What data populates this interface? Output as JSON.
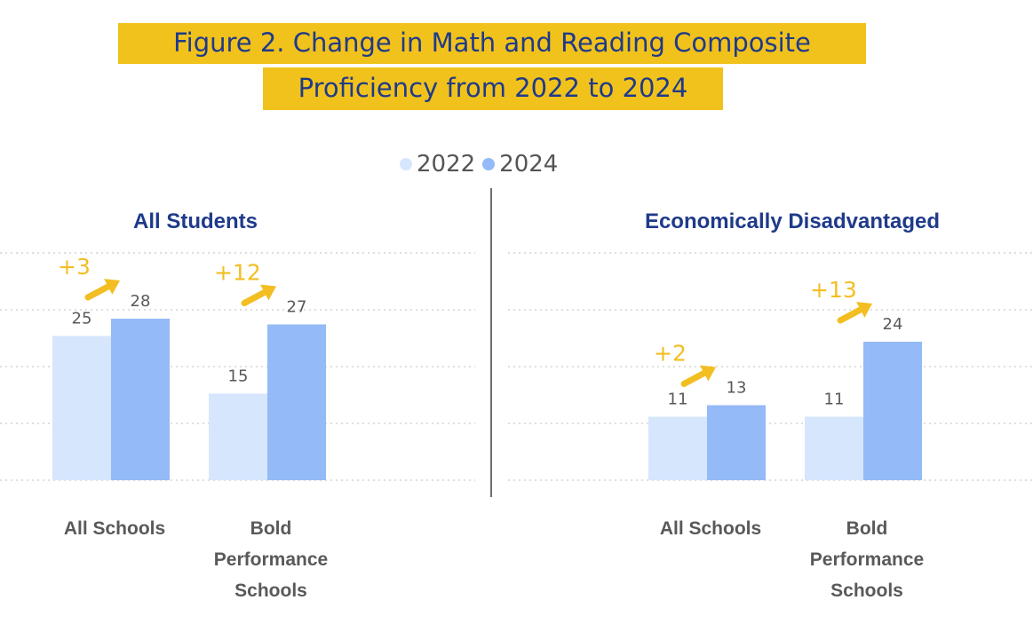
{
  "title_line_1": "Figure 2. Change in Math and Reading Composite",
  "title_line_2": "Proficiency from 2022 to 2024",
  "colors": {
    "title_band": "#F1C21B",
    "title_text": "#1F3A8A",
    "series_2022": "#D6E6FC",
    "series_2024": "#94BAF7",
    "delta": "#F2BE22",
    "grid": "#D4D4D4"
  },
  "legend": [
    {
      "label": "2022",
      "color": "#D6E6FC"
    },
    {
      "label": "2024",
      "color": "#94BAF7"
    }
  ],
  "chart_data": [
    {
      "type": "bar",
      "title": "All Students",
      "categories": [
        "All Schools",
        "Bold Performance Schools"
      ],
      "category_lines": [
        [
          "All Schools"
        ],
        [
          "Bold",
          "Performance",
          "Schools"
        ]
      ],
      "series": [
        {
          "name": "2022",
          "values": [
            25,
            15
          ]
        },
        {
          "name": "2024",
          "values": [
            28,
            27
          ]
        }
      ],
      "annotations": [
        "+3",
        "+12"
      ],
      "ylim": [
        0,
        40
      ],
      "grid": true
    },
    {
      "type": "bar",
      "title": "Economically Disadvantaged",
      "categories": [
        "All Schools",
        "Bold Performance Schools"
      ],
      "category_lines": [
        [
          "All Schools"
        ],
        [
          "Bold",
          "Performance",
          "Schools"
        ]
      ],
      "series": [
        {
          "name": "2022",
          "values": [
            11,
            11
          ]
        },
        {
          "name": "2024",
          "values": [
            13,
            24
          ]
        }
      ],
      "annotations": [
        "+2",
        "+13"
      ],
      "ylim": [
        0,
        40
      ],
      "grid": true
    }
  ]
}
